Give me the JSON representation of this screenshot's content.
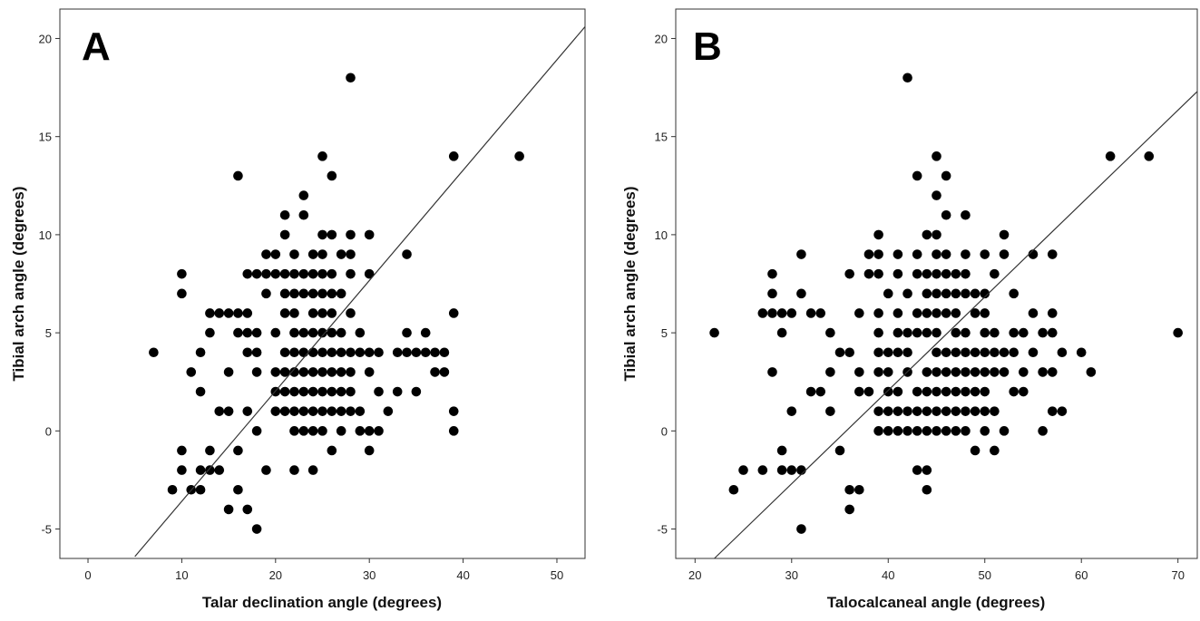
{
  "chart_data": [
    {
      "type": "scatter",
      "panel_label": "A",
      "xlabel": "Talar declination angle (degrees)",
      "ylabel": "Tibial arch angle (degrees)",
      "xlim": [
        -3,
        53
      ],
      "ylim": [
        -6.5,
        21.5
      ],
      "xticks": [
        0,
        10,
        20,
        30,
        40,
        50
      ],
      "yticks": [
        -5,
        0,
        5,
        10,
        15,
        20
      ],
      "grid": false,
      "fit_line": {
        "x": [
          5,
          53
        ],
        "y": [
          -6.4,
          20.6
        ]
      },
      "points": [
        [
          28,
          18
        ],
        [
          25,
          14
        ],
        [
          39,
          14
        ],
        [
          46,
          14
        ],
        [
          16,
          13
        ],
        [
          26,
          13
        ],
        [
          23,
          12
        ],
        [
          21,
          11
        ],
        [
          23,
          11
        ],
        [
          21,
          10
        ],
        [
          25,
          10
        ],
        [
          26,
          10
        ],
        [
          28,
          10
        ],
        [
          30,
          10
        ],
        [
          19,
          9
        ],
        [
          20,
          9
        ],
        [
          22,
          9
        ],
        [
          24,
          9
        ],
        [
          25,
          9
        ],
        [
          27,
          9
        ],
        [
          28,
          9
        ],
        [
          34,
          9
        ],
        [
          10,
          8
        ],
        [
          17,
          8
        ],
        [
          18,
          8
        ],
        [
          19,
          8
        ],
        [
          20,
          8
        ],
        [
          21,
          8
        ],
        [
          22,
          8
        ],
        [
          23,
          8
        ],
        [
          24,
          8
        ],
        [
          25,
          8
        ],
        [
          26,
          8
        ],
        [
          28,
          8
        ],
        [
          30,
          8
        ],
        [
          10,
          7
        ],
        [
          19,
          7
        ],
        [
          21,
          7
        ],
        [
          22,
          7
        ],
        [
          23,
          7
        ],
        [
          24,
          7
        ],
        [
          25,
          7
        ],
        [
          26,
          7
        ],
        [
          27,
          7
        ],
        [
          13,
          6
        ],
        [
          14,
          6
        ],
        [
          15,
          6
        ],
        [
          16,
          6
        ],
        [
          17,
          6
        ],
        [
          21,
          6
        ],
        [
          22,
          6
        ],
        [
          24,
          6
        ],
        [
          25,
          6
        ],
        [
          26,
          6
        ],
        [
          28,
          6
        ],
        [
          39,
          6
        ],
        [
          13,
          5
        ],
        [
          16,
          5
        ],
        [
          17,
          5
        ],
        [
          18,
          5
        ],
        [
          20,
          5
        ],
        [
          22,
          5
        ],
        [
          23,
          5
        ],
        [
          24,
          5
        ],
        [
          25,
          5
        ],
        [
          26,
          5
        ],
        [
          27,
          5
        ],
        [
          29,
          5
        ],
        [
          34,
          5
        ],
        [
          36,
          5
        ],
        [
          7,
          4
        ],
        [
          12,
          4
        ],
        [
          17,
          4
        ],
        [
          18,
          4
        ],
        [
          21,
          4
        ],
        [
          22,
          4
        ],
        [
          23,
          4
        ],
        [
          24,
          4
        ],
        [
          25,
          4
        ],
        [
          26,
          4
        ],
        [
          27,
          4
        ],
        [
          28,
          4
        ],
        [
          29,
          4
        ],
        [
          30,
          4
        ],
        [
          31,
          4
        ],
        [
          33,
          4
        ],
        [
          34,
          4
        ],
        [
          35,
          4
        ],
        [
          36,
          4
        ],
        [
          37,
          4
        ],
        [
          38,
          4
        ],
        [
          11,
          3
        ],
        [
          15,
          3
        ],
        [
          18,
          3
        ],
        [
          20,
          3
        ],
        [
          21,
          3
        ],
        [
          22,
          3
        ],
        [
          23,
          3
        ],
        [
          24,
          3
        ],
        [
          25,
          3
        ],
        [
          26,
          3
        ],
        [
          27,
          3
        ],
        [
          28,
          3
        ],
        [
          30,
          3
        ],
        [
          37,
          3
        ],
        [
          38,
          3
        ],
        [
          12,
          2
        ],
        [
          20,
          2
        ],
        [
          21,
          2
        ],
        [
          22,
          2
        ],
        [
          23,
          2
        ],
        [
          24,
          2
        ],
        [
          25,
          2
        ],
        [
          26,
          2
        ],
        [
          27,
          2
        ],
        [
          28,
          2
        ],
        [
          31,
          2
        ],
        [
          33,
          2
        ],
        [
          35,
          2
        ],
        [
          14,
          1
        ],
        [
          15,
          1
        ],
        [
          17,
          1
        ],
        [
          20,
          1
        ],
        [
          21,
          1
        ],
        [
          22,
          1
        ],
        [
          23,
          1
        ],
        [
          24,
          1
        ],
        [
          25,
          1
        ],
        [
          26,
          1
        ],
        [
          27,
          1
        ],
        [
          28,
          1
        ],
        [
          29,
          1
        ],
        [
          32,
          1
        ],
        [
          39,
          1
        ],
        [
          18,
          0
        ],
        [
          22,
          0
        ],
        [
          23,
          0
        ],
        [
          24,
          0
        ],
        [
          25,
          0
        ],
        [
          27,
          0
        ],
        [
          29,
          0
        ],
        [
          30,
          0
        ],
        [
          31,
          0
        ],
        [
          39,
          0
        ],
        [
          10,
          -1
        ],
        [
          13,
          -1
        ],
        [
          16,
          -1
        ],
        [
          26,
          -1
        ],
        [
          30,
          -1
        ],
        [
          10,
          -2
        ],
        [
          12,
          -2
        ],
        [
          13,
          -2
        ],
        [
          14,
          -2
        ],
        [
          19,
          -2
        ],
        [
          22,
          -2
        ],
        [
          24,
          -2
        ],
        [
          9,
          -3
        ],
        [
          11,
          -3
        ],
        [
          12,
          -3
        ],
        [
          16,
          -3
        ],
        [
          15,
          -4
        ],
        [
          17,
          -4
        ],
        [
          18,
          -5
        ]
      ]
    },
    {
      "type": "scatter",
      "panel_label": "B",
      "xlabel": "Talocalcaneal angle (degrees)",
      "ylabel": "Tibial arch angle (degrees)",
      "xlim": [
        18,
        72
      ],
      "ylim": [
        -6.5,
        21.5
      ],
      "xticks": [
        20,
        30,
        40,
        50,
        60,
        70
      ],
      "yticks": [
        -5,
        0,
        5,
        10,
        15,
        20
      ],
      "grid": false,
      "fit_line": {
        "x": [
          22,
          72
        ],
        "y": [
          -6.5,
          17.3
        ]
      },
      "points": [
        [
          42,
          18
        ],
        [
          45,
          14
        ],
        [
          63,
          14
        ],
        [
          67,
          14
        ],
        [
          43,
          13
        ],
        [
          46,
          13
        ],
        [
          45,
          12
        ],
        [
          46,
          11
        ],
        [
          48,
          11
        ],
        [
          39,
          10
        ],
        [
          44,
          10
        ],
        [
          45,
          10
        ],
        [
          52,
          10
        ],
        [
          31,
          9
        ],
        [
          38,
          9
        ],
        [
          39,
          9
        ],
        [
          41,
          9
        ],
        [
          43,
          9
        ],
        [
          45,
          9
        ],
        [
          46,
          9
        ],
        [
          48,
          9
        ],
        [
          50,
          9
        ],
        [
          52,
          9
        ],
        [
          55,
          9
        ],
        [
          57,
          9
        ],
        [
          28,
          8
        ],
        [
          36,
          8
        ],
        [
          38,
          8
        ],
        [
          39,
          8
        ],
        [
          41,
          8
        ],
        [
          43,
          8
        ],
        [
          44,
          8
        ],
        [
          45,
          8
        ],
        [
          46,
          8
        ],
        [
          47,
          8
        ],
        [
          48,
          8
        ],
        [
          51,
          8
        ],
        [
          28,
          7
        ],
        [
          31,
          7
        ],
        [
          40,
          7
        ],
        [
          42,
          7
        ],
        [
          44,
          7
        ],
        [
          45,
          7
        ],
        [
          46,
          7
        ],
        [
          47,
          7
        ],
        [
          48,
          7
        ],
        [
          49,
          7
        ],
        [
          50,
          7
        ],
        [
          53,
          7
        ],
        [
          27,
          6
        ],
        [
          28,
          6
        ],
        [
          29,
          6
        ],
        [
          30,
          6
        ],
        [
          32,
          6
        ],
        [
          33,
          6
        ],
        [
          37,
          6
        ],
        [
          39,
          6
        ],
        [
          41,
          6
        ],
        [
          43,
          6
        ],
        [
          44,
          6
        ],
        [
          45,
          6
        ],
        [
          46,
          6
        ],
        [
          47,
          6
        ],
        [
          49,
          6
        ],
        [
          50,
          6
        ],
        [
          55,
          6
        ],
        [
          57,
          6
        ],
        [
          22,
          5
        ],
        [
          29,
          5
        ],
        [
          34,
          5
        ],
        [
          39,
          5
        ],
        [
          41,
          5
        ],
        [
          42,
          5
        ],
        [
          43,
          5
        ],
        [
          44,
          5
        ],
        [
          45,
          5
        ],
        [
          47,
          5
        ],
        [
          48,
          5
        ],
        [
          50,
          5
        ],
        [
          51,
          5
        ],
        [
          53,
          5
        ],
        [
          54,
          5
        ],
        [
          56,
          5
        ],
        [
          57,
          5
        ],
        [
          70,
          5
        ],
        [
          35,
          4
        ],
        [
          36,
          4
        ],
        [
          39,
          4
        ],
        [
          40,
          4
        ],
        [
          41,
          4
        ],
        [
          42,
          4
        ],
        [
          45,
          4
        ],
        [
          46,
          4
        ],
        [
          47,
          4
        ],
        [
          48,
          4
        ],
        [
          49,
          4
        ],
        [
          50,
          4
        ],
        [
          51,
          4
        ],
        [
          52,
          4
        ],
        [
          53,
          4
        ],
        [
          55,
          4
        ],
        [
          58,
          4
        ],
        [
          60,
          4
        ],
        [
          28,
          3
        ],
        [
          34,
          3
        ],
        [
          37,
          3
        ],
        [
          39,
          3
        ],
        [
          40,
          3
        ],
        [
          42,
          3
        ],
        [
          44,
          3
        ],
        [
          45,
          3
        ],
        [
          46,
          3
        ],
        [
          47,
          3
        ],
        [
          48,
          3
        ],
        [
          49,
          3
        ],
        [
          50,
          3
        ],
        [
          51,
          3
        ],
        [
          52,
          3
        ],
        [
          54,
          3
        ],
        [
          56,
          3
        ],
        [
          57,
          3
        ],
        [
          61,
          3
        ],
        [
          32,
          2
        ],
        [
          33,
          2
        ],
        [
          37,
          2
        ],
        [
          38,
          2
        ],
        [
          40,
          2
        ],
        [
          41,
          2
        ],
        [
          43,
          2
        ],
        [
          44,
          2
        ],
        [
          45,
          2
        ],
        [
          46,
          2
        ],
        [
          47,
          2
        ],
        [
          48,
          2
        ],
        [
          49,
          2
        ],
        [
          50,
          2
        ],
        [
          53,
          2
        ],
        [
          54,
          2
        ],
        [
          30,
          1
        ],
        [
          34,
          1
        ],
        [
          39,
          1
        ],
        [
          40,
          1
        ],
        [
          41,
          1
        ],
        [
          42,
          1
        ],
        [
          43,
          1
        ],
        [
          44,
          1
        ],
        [
          45,
          1
        ],
        [
          46,
          1
        ],
        [
          47,
          1
        ],
        [
          48,
          1
        ],
        [
          49,
          1
        ],
        [
          50,
          1
        ],
        [
          51,
          1
        ],
        [
          57,
          1
        ],
        [
          58,
          1
        ],
        [
          39,
          0
        ],
        [
          40,
          0
        ],
        [
          41,
          0
        ],
        [
          42,
          0
        ],
        [
          43,
          0
        ],
        [
          44,
          0
        ],
        [
          45,
          0
        ],
        [
          46,
          0
        ],
        [
          47,
          0
        ],
        [
          48,
          0
        ],
        [
          50,
          0
        ],
        [
          52,
          0
        ],
        [
          56,
          0
        ],
        [
          29,
          -1
        ],
        [
          35,
          -1
        ],
        [
          49,
          -1
        ],
        [
          51,
          -1
        ],
        [
          25,
          -2
        ],
        [
          27,
          -2
        ],
        [
          29,
          -2
        ],
        [
          30,
          -2
        ],
        [
          31,
          -2
        ],
        [
          43,
          -2
        ],
        [
          44,
          -2
        ],
        [
          24,
          -3
        ],
        [
          36,
          -3
        ],
        [
          37,
          -3
        ],
        [
          44,
          -3
        ],
        [
          36,
          -4
        ],
        [
          31,
          -5
        ]
      ]
    }
  ]
}
